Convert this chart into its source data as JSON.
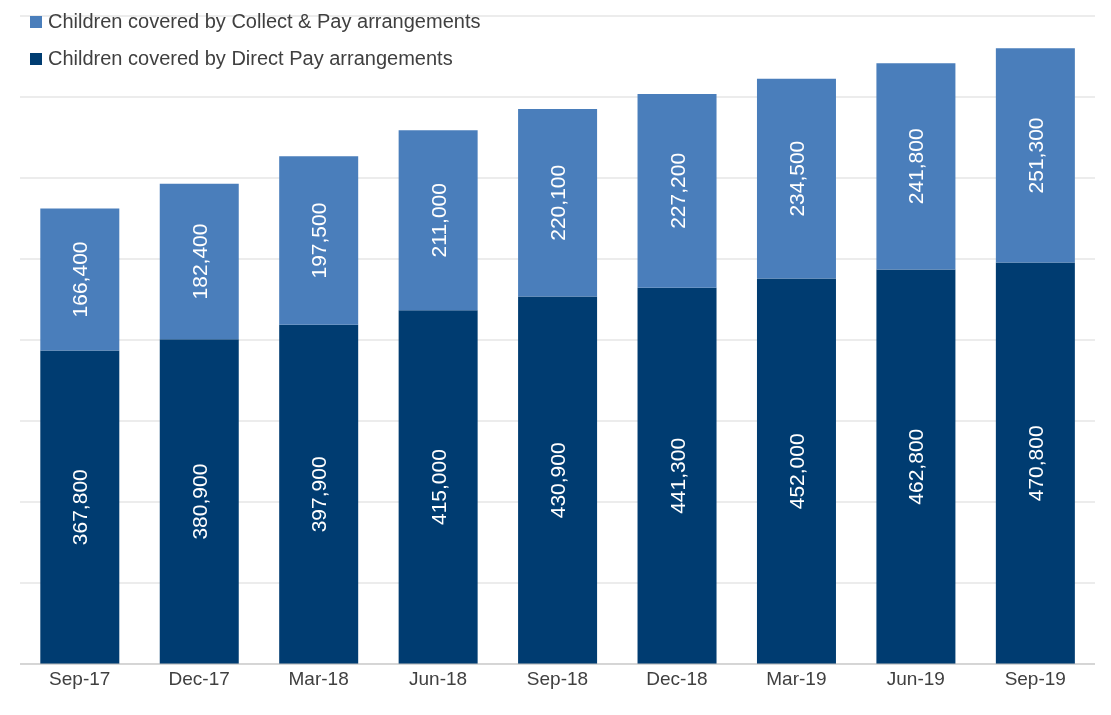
{
  "chart_data": {
    "type": "bar",
    "stacked": true,
    "categories": [
      "Sep-17",
      "Dec-17",
      "Mar-18",
      "Jun-18",
      "Sep-18",
      "Dec-18",
      "Mar-19",
      "Jun-19",
      "Sep-19"
    ],
    "series": [
      {
        "name": "Children covered by Direct Pay arrangements",
        "color": "#003c71",
        "values": [
          367800,
          380900,
          397900,
          415000,
          430900,
          441300,
          452000,
          462800,
          470800
        ],
        "value_labels": [
          "367,800",
          "380,900",
          "397,900",
          "415,000",
          "430,900",
          "441,300",
          "452,000",
          "462,800",
          "470,800"
        ]
      },
      {
        "name": "Children covered by Collect & Pay arrangements",
        "color": "#4a7ebb",
        "values": [
          166400,
          182400,
          197500,
          211000,
          220100,
          227200,
          234500,
          241800,
          251300
        ],
        "value_labels": [
          "166,400",
          "182,400",
          "197,500",
          "211,000",
          "220,100",
          "227,200",
          "234,500",
          "241,800",
          "251,300"
        ]
      }
    ],
    "tick_labels": "x",
    "grid": "y",
    "legend": "top left"
  }
}
